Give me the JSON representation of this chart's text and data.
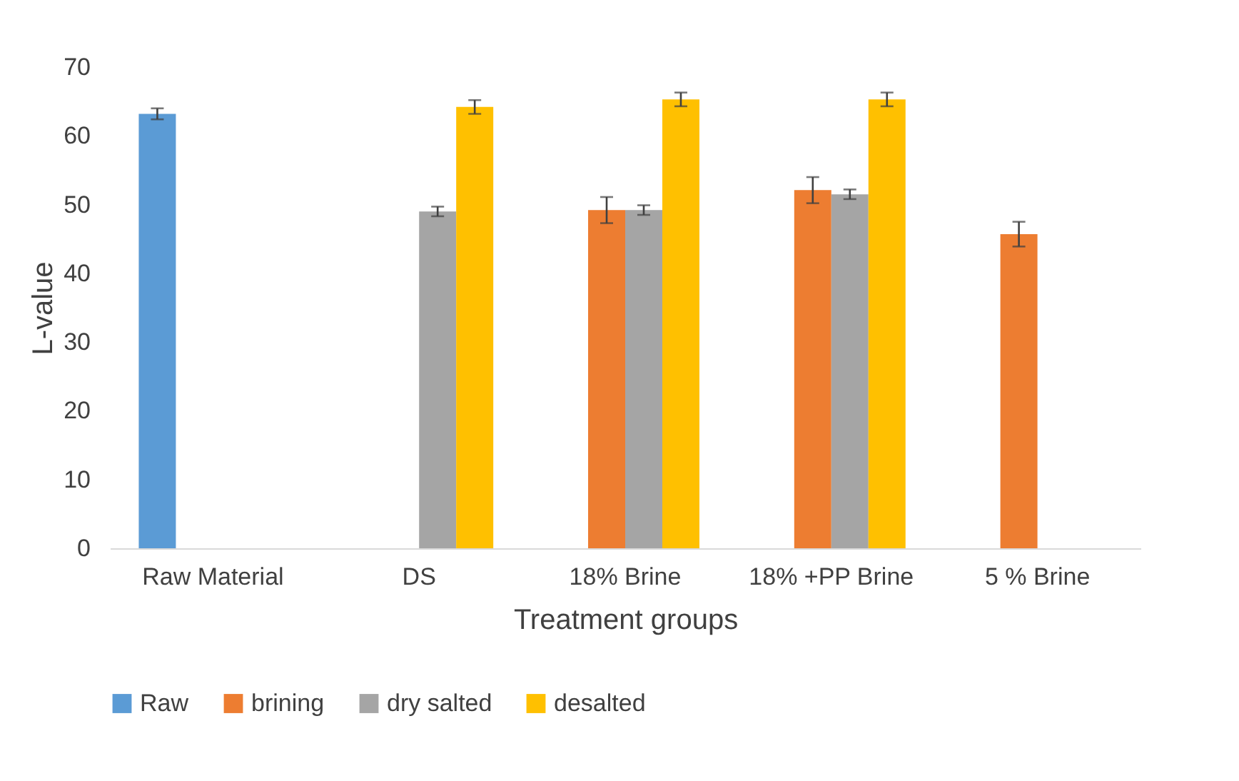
{
  "chart_data": {
    "type": "bar",
    "xlabel": "Treatment groups",
    "ylabel": "L-value",
    "categories": [
      "Raw Material",
      "DS",
      "18% Brine",
      "18% +PP Brine",
      "5 % Brine"
    ],
    "series": [
      {
        "name": "Raw",
        "color": "#5b9bd5",
        "values": [
          63.2,
          null,
          null,
          null,
          null
        ],
        "errors": [
          0.8,
          null,
          null,
          null,
          null
        ]
      },
      {
        "name": "brining",
        "color": "#ed7d31",
        "values": [
          null,
          null,
          49.2,
          52.1,
          45.7
        ],
        "errors": [
          null,
          null,
          1.9,
          1.9,
          1.8
        ]
      },
      {
        "name": "dry salted",
        "color": "#a5a5a5",
        "values": [
          null,
          49.0,
          49.2,
          51.5,
          null
        ],
        "errors": [
          null,
          0.7,
          0.7,
          0.7,
          null
        ]
      },
      {
        "name": "desalted",
        "color": "#ffc000",
        "values": [
          null,
          64.2,
          65.3,
          65.3,
          null
        ],
        "errors": [
          null,
          1.0,
          1.0,
          1.0,
          null
        ]
      }
    ],
    "ylim": [
      0,
      70
    ],
    "yticks": [
      0,
      10,
      20,
      30,
      40,
      50,
      60,
      70
    ],
    "grid": false,
    "legend": "bottom"
  }
}
